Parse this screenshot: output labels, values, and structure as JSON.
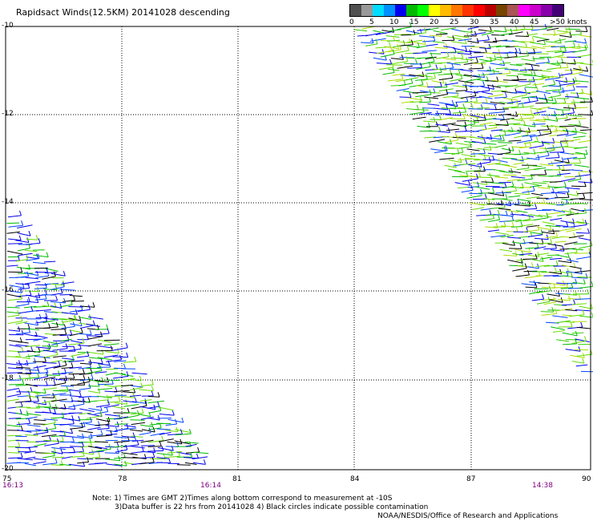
{
  "title": "Rapidsact Winds(12.5KM) 20141028 descending",
  "legend": {
    "colors": [
      "#505050",
      "#999999",
      "#00ddff",
      "#0090ff",
      "#0000ee",
      "#00bb00",
      "#00ff00",
      "#ffff00",
      "#ffbb00",
      "#ff7700",
      "#ff3300",
      "#ff0000",
      "#bb0000",
      "#774400",
      "#aa5555",
      "#ff00ff",
      "#cc00cc",
      "#8800aa",
      "#440077"
    ],
    "labels": [
      "0",
      "5",
      "10",
      "15",
      "20",
      "25",
      "30",
      "35",
      "40",
      "45",
      ">50 knots"
    ]
  },
  "axes": {
    "lat_labels": [
      "-10",
      "-12",
      "-14",
      "-16",
      "-18",
      "-20"
    ],
    "lon_labels": [
      "75",
      "78",
      "81",
      "84",
      "87",
      "90"
    ]
  },
  "times": {
    "left": "16:13",
    "mid": "16:14",
    "right": "14:38"
  },
  "notes": {
    "line1": "Note: 1) Times are GMT 2)Times along bottom correspond to measurement at -10S",
    "line2": "3)Data buffer is 22 hrs from 20141028 4) Black circles indicate possible contamination",
    "line3": "NOAA/NESDIS/Office of Research and Applications"
  }
}
